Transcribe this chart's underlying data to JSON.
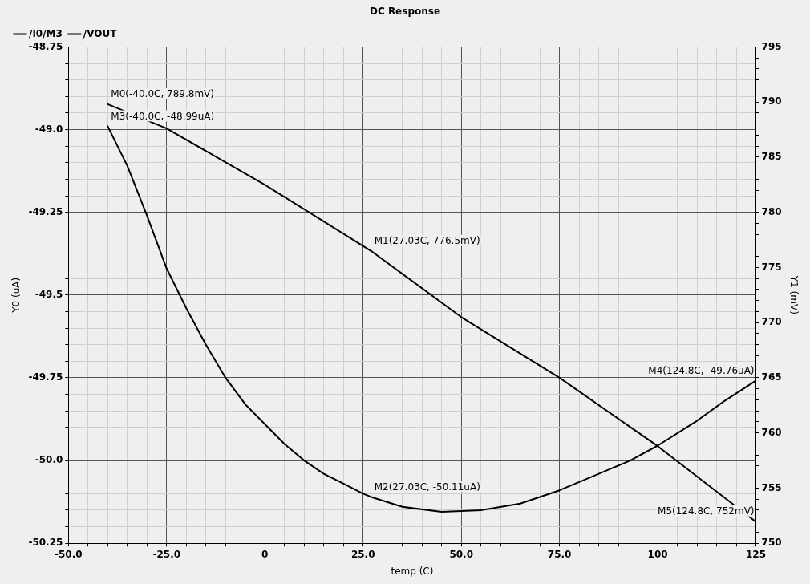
{
  "chart_data": {
    "type": "line",
    "title": "DC Response",
    "xlabel": "temp (C)",
    "ylabel": "Y0 (uA)",
    "y2label": "Y1 (mV)",
    "legend": "top left",
    "grid": true,
    "marker": "none",
    "xlim": [
      -50,
      125
    ],
    "ylim": [
      -50.25,
      -48.75
    ],
    "y2lim": [
      750,
      795
    ],
    "xticks": [
      {
        "value": -50,
        "label": "-50.0"
      },
      {
        "value": -45,
        "label": null
      },
      {
        "value": -40,
        "label": null
      },
      {
        "value": -35,
        "label": null
      },
      {
        "value": -30,
        "label": null
      },
      {
        "value": -25,
        "label": "-25.0"
      },
      {
        "value": -20,
        "label": null
      },
      {
        "value": -15,
        "label": null
      },
      {
        "value": -10,
        "label": null
      },
      {
        "value": -5,
        "label": null
      },
      0,
      {
        "value": 5,
        "label": null
      },
      {
        "value": 10,
        "label": null
      },
      {
        "value": 15,
        "label": null
      },
      {
        "value": 20,
        "label": null
      },
      {
        "value": 25,
        "label": "25.0"
      },
      {
        "value": 30,
        "label": null
      },
      {
        "value": 35,
        "label": null
      },
      {
        "value": 40,
        "label": null
      },
      {
        "value": 45,
        "label": null
      },
      {
        "value": 50,
        "label": "50.0"
      },
      {
        "value": 55,
        "label": null
      },
      {
        "value": 60,
        "label": null
      },
      {
        "value": 65,
        "label": null
      },
      {
        "value": 70,
        "label": null
      },
      {
        "value": 75,
        "label": "75.0"
      },
      {
        "value": 80,
        "label": null
      },
      {
        "value": 85,
        "label": null
      },
      {
        "value": 90,
        "label": null
      },
      {
        "value": 95,
        "label": null
      },
      100,
      {
        "value": 105,
        "label": null
      },
      {
        "value": 110,
        "label": null
      },
      {
        "value": 115,
        "label": null
      },
      {
        "value": 120,
        "label": null
      },
      125
    ],
    "yticks": [
      -48.75,
      {
        "value": -48.8,
        "label": null
      },
      {
        "value": -48.85,
        "label": null
      },
      {
        "value": -48.9,
        "label": null
      },
      {
        "value": -48.95,
        "label": null
      },
      {
        "value": -49,
        "label": "-49.0"
      },
      {
        "value": -49.05,
        "label": null
      },
      {
        "value": -49.1,
        "label": null
      },
      {
        "value": -49.15,
        "label": null
      },
      {
        "value": -49.2,
        "label": null
      },
      -49.25,
      {
        "value": -49.3,
        "label": null
      },
      {
        "value": -49.35,
        "label": null
      },
      {
        "value": -49.4,
        "label": null
      },
      {
        "value": -49.45,
        "label": null
      },
      {
        "value": -49.5,
        "label": "-49.5"
      },
      {
        "value": -49.55,
        "label": null
      },
      {
        "value": -49.6,
        "label": null
      },
      {
        "value": -49.65,
        "label": null
      },
      {
        "value": -49.7,
        "label": null
      },
      -49.75,
      {
        "value": -49.8,
        "label": null
      },
      {
        "value": -49.85,
        "label": null
      },
      {
        "value": -49.9,
        "label": null
      },
      {
        "value": -49.95,
        "label": null
      },
      {
        "value": -50,
        "label": "-50.0"
      },
      {
        "value": -50.05,
        "label": null
      },
      {
        "value": -50.1,
        "label": null
      },
      {
        "value": -50.15,
        "label": null
      },
      {
        "value": -50.2,
        "label": null
      },
      -50.25
    ],
    "y2ticks": [
      750,
      {
        "value": 751,
        "label": null
      },
      {
        "value": 752,
        "label": null
      },
      {
        "value": 753,
        "label": null
      },
      {
        "value": 754,
        "label": null
      },
      755,
      {
        "value": 756,
        "label": null
      },
      {
        "value": 757,
        "label": null
      },
      {
        "value": 758,
        "label": null
      },
      {
        "value": 759,
        "label": null
      },
      760,
      {
        "value": 761,
        "label": null
      },
      {
        "value": 762,
        "label": null
      },
      {
        "value": 763,
        "label": null
      },
      {
        "value": 764,
        "label": null
      },
      765,
      {
        "value": 766,
        "label": null
      },
      {
        "value": 767,
        "label": null
      },
      {
        "value": 768,
        "label": null
      },
      {
        "value": 769,
        "label": null
      },
      770,
      {
        "value": 771,
        "label": null
      },
      {
        "value": 772,
        "label": null
      },
      {
        "value": 773,
        "label": null
      },
      {
        "value": 774,
        "label": null
      },
      775,
      {
        "value": 776,
        "label": null
      },
      {
        "value": 777,
        "label": null
      },
      {
        "value": 778,
        "label": null
      },
      {
        "value": 779,
        "label": null
      },
      780,
      {
        "value": 781,
        "label": null
      },
      {
        "value": 782,
        "label": null
      },
      {
        "value": 783,
        "label": null
      },
      {
        "value": 784,
        "label": null
      },
      785,
      {
        "value": 786,
        "label": null
      },
      {
        "value": 787,
        "label": null
      },
      {
        "value": 788,
        "label": null
      },
      {
        "value": 789,
        "label": null
      },
      790,
      {
        "value": 791,
        "label": null
      },
      {
        "value": 792,
        "label": null
      },
      {
        "value": 793,
        "label": null
      },
      {
        "value": 794,
        "label": null
      },
      795
    ],
    "series": [
      {
        "name": "/I0/M3",
        "color": "#000000",
        "axis": "y",
        "x": [
          -40,
          -35,
          -30,
          -25,
          -20,
          -15,
          -10,
          -5,
          0,
          5,
          10,
          15,
          20,
          25,
          27.03,
          35,
          45,
          55,
          65,
          75,
          85,
          93,
          100,
          110,
          117,
          124.8
        ],
        "values": [
          -48.99,
          -49.11,
          -49.26,
          -49.42,
          -49.54,
          -49.65,
          -49.75,
          -49.83,
          -49.89,
          -49.95,
          -50.0,
          -50.04,
          -50.07,
          -50.1,
          -50.11,
          -50.14,
          -50.155,
          -50.15,
          -50.13,
          -50.09,
          -50.04,
          -50.0,
          -49.955,
          -49.88,
          -49.82,
          -49.76
        ],
        "value_labels": [
          "M3(-40.0C, -48.99uA)",
          null,
          null,
          null,
          null,
          null,
          null,
          null,
          null,
          null,
          null,
          null,
          null,
          null,
          "M2(27.03C, -50.11uA)",
          null,
          null,
          null,
          null,
          null,
          null,
          null,
          null,
          null,
          null,
          "M4(124.8C, -49.76uA)"
        ]
      },
      {
        "name": "/VOUT",
        "color": "#000000",
        "axis": "y2",
        "x": [
          -40,
          -25,
          0,
          27.03,
          50,
          75,
          100,
          124.8
        ],
        "values": [
          789.8,
          787.6,
          782.5,
          776.5,
          770.5,
          765,
          758.8,
          752
        ],
        "value_labels": [
          "M0(-40.0C, 789.8mV)",
          null,
          null,
          "M1(27.03C, 776.5mV)",
          null,
          null,
          null,
          "M5(124.8C, 752mV)"
        ]
      }
    ]
  }
}
